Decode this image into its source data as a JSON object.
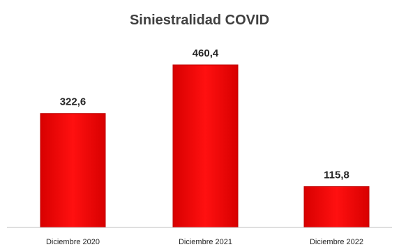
{
  "chart_data": {
    "type": "bar",
    "title": "Siniestralidad COVID",
    "categories": [
      "Diciembre 2020",
      "Diciembre 2021",
      "Diciembre 2022"
    ],
    "values": [
      322.6,
      460.4,
      115.8
    ],
    "value_labels": [
      "322,6",
      "460,4",
      "115,8"
    ],
    "xlabel": "",
    "ylabel": "",
    "ylim": [
      0,
      500
    ],
    "grid": false,
    "legend": "none",
    "colors": {
      "bar": "#ff0000",
      "bar_edge": "#c00000",
      "axis": "#bfbfbf",
      "text": "#262626",
      "title": "#404040"
    }
  }
}
